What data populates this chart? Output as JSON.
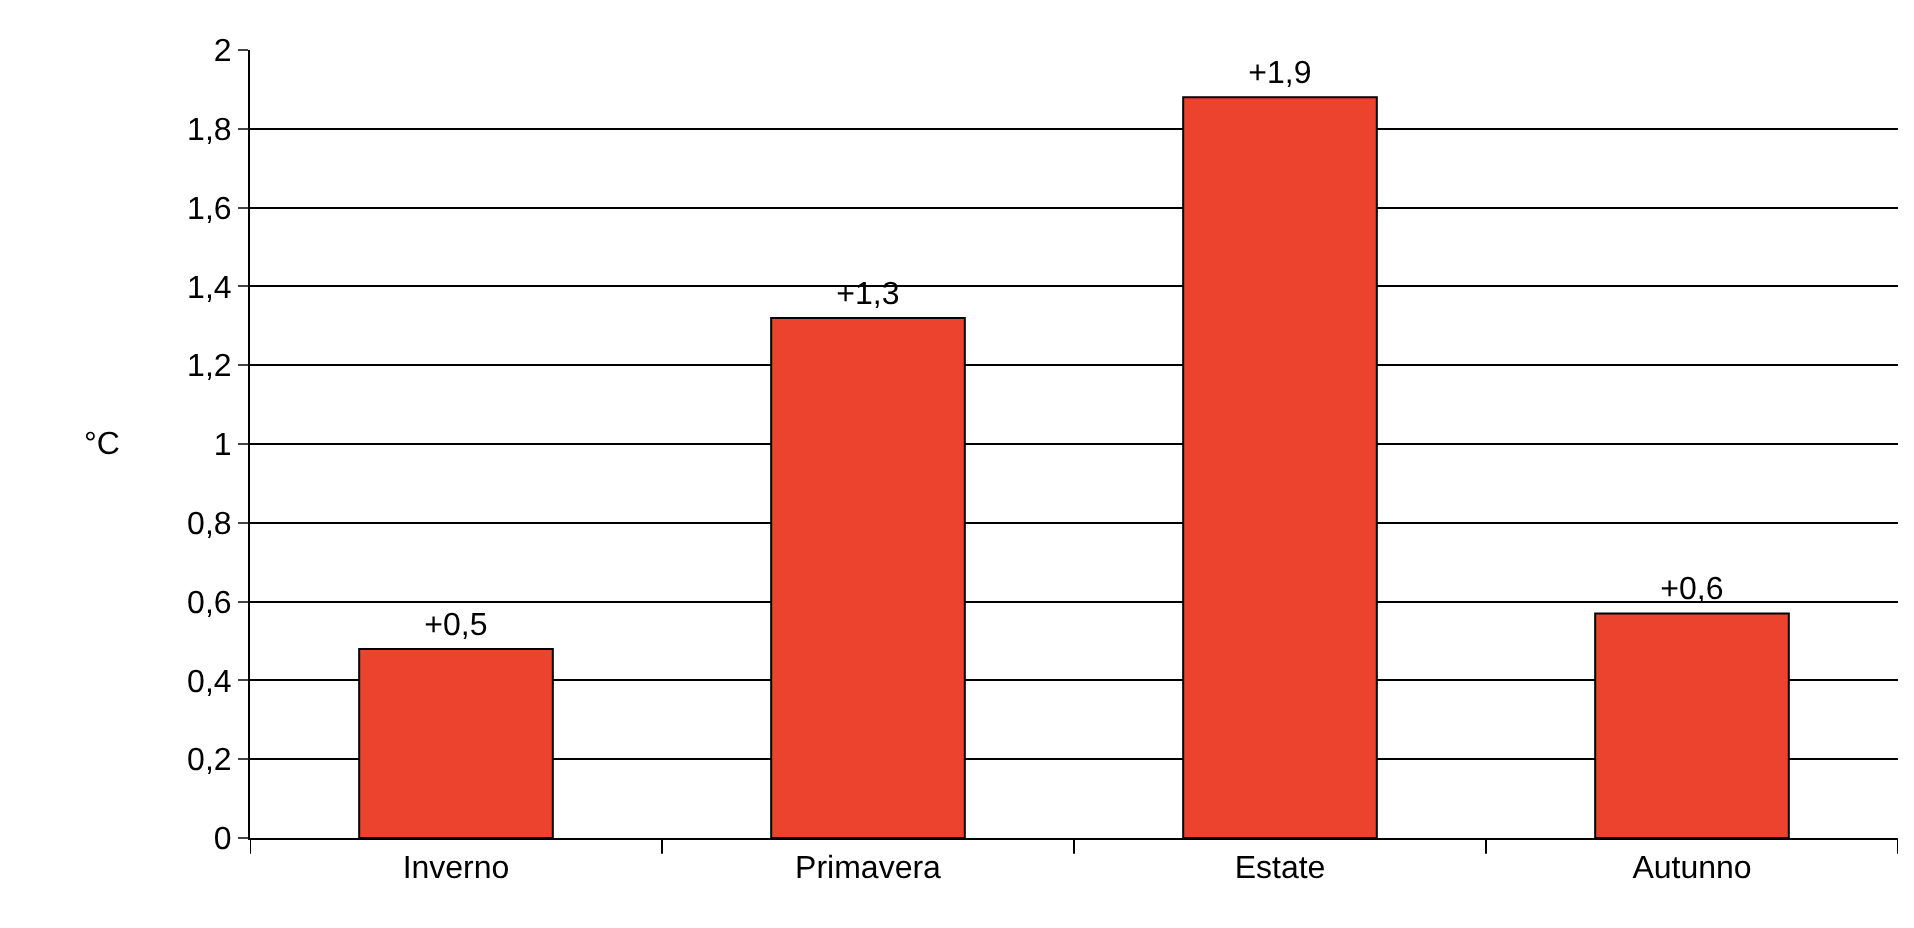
{
  "chart_data": {
    "type": "bar",
    "ylabel": "°C",
    "categories": [
      "Inverno",
      "Primavera",
      "Estate",
      "Autunno"
    ],
    "values": [
      0.48,
      1.32,
      1.88,
      0.57
    ],
    "value_labels": [
      "+0,5",
      "+1,3",
      "+1,9",
      "+0,6"
    ],
    "color": "#ec432e",
    "ylim": [
      0,
      2
    ],
    "yticks": [
      0,
      {
        "value": 0.2,
        "label": "0,2"
      },
      {
        "value": 0.4,
        "label": "0,4"
      },
      {
        "value": 0.6,
        "label": "0,6"
      },
      {
        "value": 0.8,
        "label": "0,8"
      },
      1,
      {
        "value": 1.2,
        "label": "1,2"
      },
      {
        "value": 1.4,
        "label": "1,4"
      },
      {
        "value": 1.6,
        "label": "1,6"
      },
      {
        "value": 1.8,
        "label": "1,8"
      },
      2
    ],
    "grid": "y",
    "legend": false
  }
}
